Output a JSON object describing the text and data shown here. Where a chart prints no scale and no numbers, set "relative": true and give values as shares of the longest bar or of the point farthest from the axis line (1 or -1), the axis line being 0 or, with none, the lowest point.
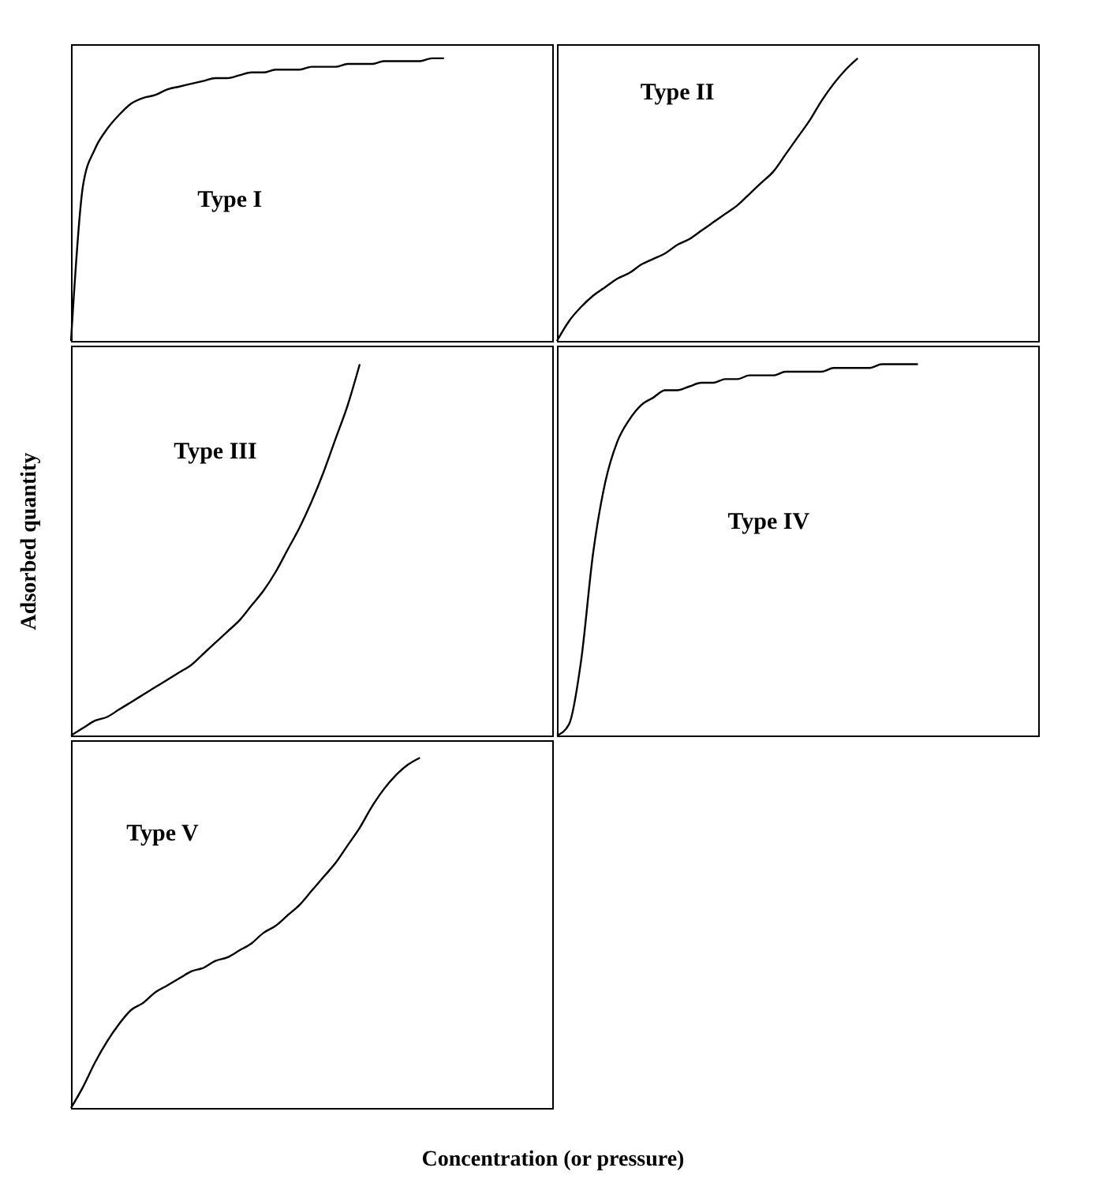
{
  "chart_data": [
    {
      "type": "line",
      "title": "Type I",
      "relative": true,
      "color": "#000000",
      "categories": [
        null,
        null,
        null,
        null,
        null,
        null,
        null,
        null,
        null,
        null,
        null,
        null,
        null,
        null,
        null,
        null,
        null,
        null,
        null,
        null,
        null,
        null,
        null,
        null,
        null,
        null,
        null,
        null,
        null,
        null,
        null,
        null,
        null,
        null,
        null,
        null,
        null,
        null,
        null,
        null
      ],
      "values": [
        0,
        0.55,
        0.68,
        0.75,
        0.8,
        0.84,
        0.86,
        0.87,
        0.89,
        0.9,
        0.91,
        0.92,
        0.93,
        0.93,
        0.94,
        0.95,
        0.95,
        0.96,
        0.96,
        0.96,
        0.97,
        0.97,
        0.97,
        0.98,
        0.98,
        0.98,
        0.99,
        0.99,
        0.99,
        0.99,
        1,
        1,
        null,
        null,
        null,
        null,
        null,
        null,
        null,
        null
      ]
    },
    {
      "type": "line",
      "title": "Type II",
      "relative": true,
      "color": "#000000",
      "categories": [
        null,
        null,
        null,
        null,
        null,
        null,
        null,
        null,
        null,
        null,
        null,
        null,
        null,
        null,
        null,
        null,
        null,
        null,
        null,
        null,
        null,
        null,
        null,
        null,
        null,
        null,
        null,
        null,
        null,
        null,
        null,
        null,
        null,
        null,
        null,
        null,
        null,
        null,
        null,
        null
      ],
      "values": [
        0,
        0.07,
        0.12,
        0.16,
        0.19,
        0.22,
        0.24,
        0.27,
        0.29,
        0.31,
        0.34,
        0.36,
        0.39,
        0.42,
        0.45,
        0.48,
        0.52,
        0.56,
        0.6,
        0.66,
        0.72,
        0.78,
        0.85,
        0.91,
        0.96,
        1,
        null,
        null,
        null,
        null,
        null,
        null,
        null,
        null,
        null,
        null,
        null,
        null,
        null,
        null
      ]
    },
    {
      "type": "line",
      "title": "Type III",
      "ylabel": "Adsorbed quantity",
      "relative": true,
      "color": "#000000",
      "categories": [
        null,
        null,
        null,
        null,
        null,
        null,
        null,
        null,
        null,
        null,
        null,
        null,
        null,
        null,
        null,
        null,
        null,
        null,
        null,
        null,
        null,
        null,
        null,
        null,
        null,
        null,
        null,
        null,
        null,
        null,
        null,
        null,
        null,
        null,
        null,
        null,
        null,
        null,
        null,
        null
      ],
      "values": [
        0,
        0.02,
        0.04,
        0.05,
        0.07,
        0.09,
        0.11,
        0.13,
        0.15,
        0.17,
        0.19,
        0.22,
        0.25,
        0.28,
        0.31,
        0.35,
        0.39,
        0.44,
        0.5,
        0.56,
        0.63,
        0.71,
        0.8,
        0.89,
        1,
        null,
        null,
        null,
        null,
        null,
        null,
        null,
        null,
        null,
        null,
        null,
        null,
        null,
        null,
        null
      ]
    },
    {
      "type": "line",
      "title": "Type IV",
      "relative": true,
      "color": "#000000",
      "categories": [
        null,
        null,
        null,
        null,
        null,
        null,
        null,
        null,
        null,
        null,
        null,
        null,
        null,
        null,
        null,
        null,
        null,
        null,
        null,
        null,
        null,
        null,
        null,
        null,
        null,
        null,
        null,
        null,
        null,
        null,
        null,
        null,
        null,
        null,
        null,
        null,
        null,
        null,
        null,
        null
      ],
      "values": [
        0,
        0.03,
        0.2,
        0.49,
        0.68,
        0.79,
        0.85,
        0.89,
        0.91,
        0.93,
        0.93,
        0.94,
        0.95,
        0.95,
        0.96,
        0.96,
        0.97,
        0.97,
        0.97,
        0.98,
        0.98,
        0.98,
        0.98,
        0.99,
        0.99,
        0.99,
        0.99,
        1,
        1,
        1,
        1,
        null,
        null,
        null,
        null,
        null,
        null,
        null,
        null,
        null
      ]
    },
    {
      "type": "line",
      "title": "Type V",
      "xlabel": "Concentration (or pressure)",
      "relative": true,
      "color": "#000000",
      "categories": [
        null,
        null,
        null,
        null,
        null,
        null,
        null,
        null,
        null,
        null,
        null,
        null,
        null,
        null,
        null,
        null,
        null,
        null,
        null,
        null,
        null,
        null,
        null,
        null,
        null,
        null,
        null,
        null,
        null,
        null,
        null,
        null,
        null,
        null,
        null,
        null,
        null,
        null,
        null,
        null
      ],
      "values": [
        0,
        0.06,
        0.13,
        0.19,
        0.24,
        0.28,
        0.3,
        0.33,
        0.35,
        0.37,
        0.39,
        0.4,
        0.42,
        0.43,
        0.45,
        0.47,
        0.5,
        0.52,
        0.55,
        0.58,
        0.62,
        0.66,
        0.7,
        0.75,
        0.8,
        0.86,
        0.91,
        0.95,
        0.98,
        1,
        null,
        null,
        null,
        null,
        null,
        null,
        null,
        null,
        null,
        null
      ]
    }
  ]
}
